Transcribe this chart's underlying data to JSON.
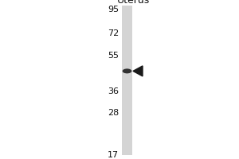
{
  "title": "Uterus",
  "mw_markers": [
    95,
    72,
    55,
    36,
    28,
    17
  ],
  "band_mw": 46,
  "bg_color": "#ffffff",
  "lane_color": "#d4d4d4",
  "band_color": "#1a1a1a",
  "arrow_color": "#1a1a1a",
  "text_color": "#111111",
  "fig_bg": "#ffffff",
  "title_fontsize": 9,
  "label_fontsize": 8
}
